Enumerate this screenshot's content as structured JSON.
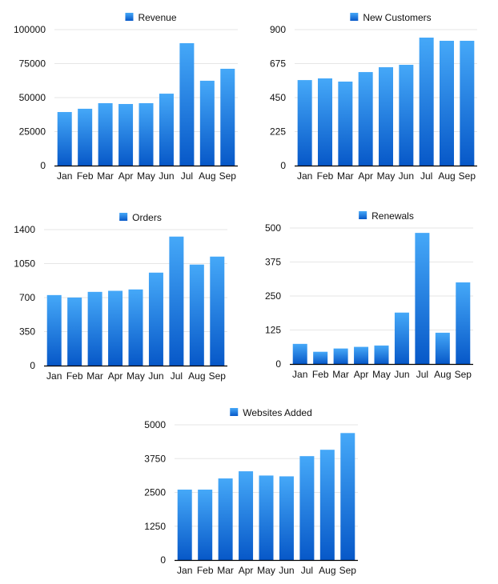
{
  "colors": {
    "bar_top": "#45a8f8",
    "bar_bottom": "#0758c8",
    "grid": "#e6e6e6",
    "axis": "#000000"
  },
  "chart_data": [
    {
      "type": "bar",
      "title": "",
      "legend": "Revenue",
      "legend_position": "top",
      "grid": true,
      "categories": [
        "Jan",
        "Feb",
        "Mar",
        "Apr",
        "May",
        "Jun",
        "Jul",
        "Aug",
        "Sep"
      ],
      "values": [
        39400,
        41800,
        45900,
        45300,
        45900,
        52900,
        90000,
        62400,
        71200
      ],
      "yticks": [
        "0",
        "25000",
        "50000",
        "75000",
        "100000"
      ],
      "ylim": [
        0,
        100000
      ]
    },
    {
      "type": "bar",
      "title": "",
      "legend": "New Customers",
      "legend_position": "top",
      "grid": true,
      "categories": [
        "Jan",
        "Feb",
        "Mar",
        "Apr",
        "May",
        "Jun",
        "Jul",
        "Aug",
        "Sep"
      ],
      "values": [
        566,
        577,
        556,
        619,
        651,
        667,
        847,
        826,
        826
      ],
      "yticks": [
        "0",
        "225",
        "450",
        "675",
        "900"
      ],
      "ylim": [
        0,
        900
      ]
    },
    {
      "type": "bar",
      "title": "",
      "legend": "Orders",
      "legend_position": "top",
      "grid": true,
      "categories": [
        "Jan",
        "Feb",
        "Mar",
        "Apr",
        "May",
        "Jun",
        "Jul",
        "Aug",
        "Sep"
      ],
      "values": [
        726,
        701,
        759,
        770,
        784,
        957,
        1328,
        1040,
        1122
      ],
      "yticks": [
        "0",
        "350",
        "700",
        "1050",
        "1400"
      ],
      "ylim": [
        0,
        1400
      ]
    },
    {
      "type": "bar",
      "title": "",
      "legend": "Renewals",
      "legend_position": "top",
      "grid": true,
      "categories": [
        "Jan",
        "Feb",
        "Mar",
        "Apr",
        "May",
        "Jun",
        "Jul",
        "Aug",
        "Sep"
      ],
      "values": [
        74,
        45,
        57,
        63,
        68,
        189,
        482,
        115,
        300
      ],
      "yticks": [
        "0",
        "125",
        "250",
        "375",
        "500"
      ],
      "ylim": [
        0,
        500
      ]
    },
    {
      "type": "bar",
      "title": "",
      "legend": "Websites Added",
      "legend_position": "top",
      "grid": true,
      "categories": [
        "Jan",
        "Feb",
        "Mar",
        "Apr",
        "May",
        "Jun",
        "Jul",
        "Aug",
        "Sep"
      ],
      "values": [
        2603,
        2603,
        3016,
        3281,
        3124,
        3094,
        3841,
        4077,
        4695
      ],
      "yticks": [
        "0",
        "1250",
        "2500",
        "3750",
        "5000"
      ],
      "ylim": [
        0,
        5000
      ]
    }
  ]
}
